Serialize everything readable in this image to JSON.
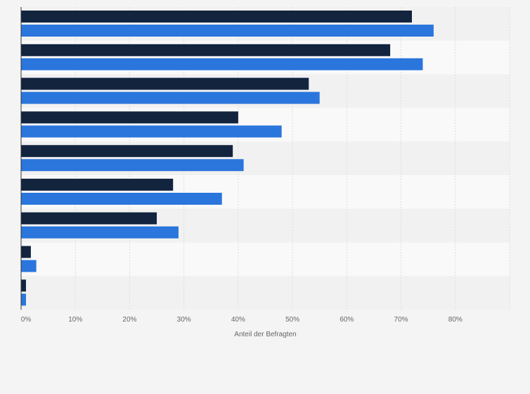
{
  "colors": {
    "page_background": "#f4f4f4",
    "band_light": "#f9f9f9",
    "band_dark": "#f1f1f1",
    "gridline": "#dddddd",
    "axis_line": "#333333",
    "series_1": "#13243f",
    "series_2": "#2a76dc"
  },
  "chart_data": {
    "type": "bar",
    "orientation": "horizontal",
    "title": "",
    "xlabel": "Anteil der Befragten",
    "ylabel": "",
    "xlim": [
      0,
      90
    ],
    "x_ticks": [
      "0%",
      "10%",
      "20%",
      "30%",
      "40%",
      "50%",
      "60%",
      "70%",
      "80%"
    ],
    "x_tick_values": [
      0,
      10,
      20,
      30,
      40,
      50,
      60,
      70,
      80
    ],
    "unit": "%",
    "grid": true,
    "legend": "none",
    "categories": [
      "",
      "",
      "",
      "",
      "",
      "",
      "",
      "",
      ""
    ],
    "series": [
      {
        "values": [
          72,
          68,
          53,
          40,
          39,
          28,
          25,
          1.8,
          0.9
        ]
      },
      {
        "values": [
          76,
          74,
          55,
          48,
          41,
          37,
          29,
          2.8,
          0.9
        ]
      }
    ]
  }
}
